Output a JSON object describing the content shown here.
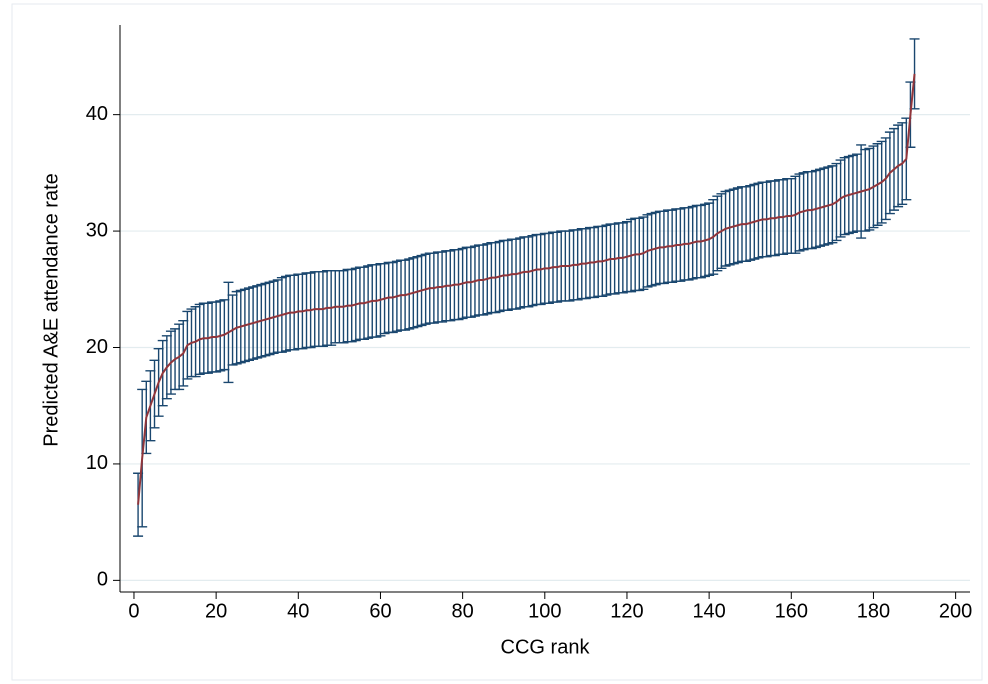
{
  "chart_data": {
    "type": "errorbar",
    "x_label": "CCG rank",
    "y_label": "Predicted A&E attendance rate",
    "x": [
      1,
      2,
      3,
      4,
      5,
      6,
      7,
      8,
      9,
      10,
      11,
      12,
      13,
      14,
      15,
      16,
      17,
      18,
      19,
      20,
      21,
      22,
      23,
      24,
      25,
      26,
      27,
      28,
      29,
      30,
      31,
      32,
      33,
      34,
      35,
      36,
      37,
      38,
      39,
      40,
      41,
      42,
      43,
      44,
      45,
      46,
      47,
      48,
      49,
      50,
      51,
      52,
      53,
      54,
      55,
      56,
      57,
      58,
      59,
      60,
      61,
      62,
      63,
      64,
      65,
      66,
      67,
      68,
      69,
      70,
      71,
      72,
      73,
      74,
      75,
      76,
      77,
      78,
      79,
      80,
      81,
      82,
      83,
      84,
      85,
      86,
      87,
      88,
      89,
      90,
      91,
      92,
      93,
      94,
      95,
      96,
      97,
      98,
      99,
      100,
      101,
      102,
      103,
      104,
      105,
      106,
      107,
      108,
      109,
      110,
      111,
      112,
      113,
      114,
      115,
      116,
      117,
      118,
      119,
      120,
      121,
      122,
      123,
      124,
      125,
      126,
      127,
      128,
      129,
      130,
      131,
      132,
      133,
      134,
      135,
      136,
      137,
      138,
      139,
      140,
      141,
      142,
      143,
      144,
      145,
      146,
      147,
      148,
      149,
      150,
      151,
      152,
      153,
      154,
      155,
      156,
      157,
      158,
      159,
      160,
      161,
      162,
      163,
      164,
      165,
      166,
      167,
      168,
      169,
      170,
      171,
      172,
      173,
      174,
      175,
      176,
      177,
      178,
      179,
      180,
      181,
      182,
      183,
      184,
      185,
      186,
      187,
      188,
      189,
      190
    ],
    "series": [
      {
        "color": "#90353b",
        "error_color": "#1a476f",
        "values": [
          6.5,
          10.5,
          14.0,
          15.0,
          16.0,
          17.0,
          17.8,
          18.3,
          18.7,
          19.0,
          19.2,
          19.5,
          20.2,
          20.4,
          20.5,
          20.7,
          20.8,
          20.8,
          20.9,
          20.9,
          21.0,
          21.1,
          21.3,
          21.5,
          21.7,
          21.8,
          21.9,
          22.0,
          22.1,
          22.2,
          22.3,
          22.4,
          22.5,
          22.6,
          22.7,
          22.8,
          22.9,
          23.0,
          23.0,
          23.1,
          23.1,
          23.2,
          23.2,
          23.3,
          23.3,
          23.3,
          23.4,
          23.4,
          23.5,
          23.5,
          23.5,
          23.6,
          23.6,
          23.7,
          23.8,
          23.8,
          23.9,
          24.0,
          24.0,
          24.1,
          24.2,
          24.3,
          24.3,
          24.4,
          24.5,
          24.5,
          24.6,
          24.7,
          24.8,
          24.9,
          25.0,
          25.1,
          25.1,
          25.2,
          25.2,
          25.3,
          25.3,
          25.4,
          25.4,
          25.5,
          25.6,
          25.6,
          25.7,
          25.8,
          25.8,
          25.9,
          26.0,
          26.0,
          26.1,
          26.2,
          26.2,
          26.3,
          26.3,
          26.4,
          26.5,
          26.5,
          26.6,
          26.7,
          26.7,
          26.8,
          26.8,
          26.9,
          26.9,
          27.0,
          27.0,
          27.0,
          27.1,
          27.1,
          27.2,
          27.2,
          27.3,
          27.3,
          27.4,
          27.4,
          27.5,
          27.6,
          27.6,
          27.7,
          27.7,
          27.8,
          27.9,
          28.0,
          28.0,
          28.1,
          28.3,
          28.4,
          28.5,
          28.6,
          28.6,
          28.7,
          28.7,
          28.8,
          28.8,
          28.9,
          28.9,
          29.0,
          29.1,
          29.1,
          29.2,
          29.3,
          29.5,
          29.8,
          30.0,
          30.2,
          30.3,
          30.4,
          30.5,
          30.6,
          30.6,
          30.7,
          30.8,
          30.9,
          31.0,
          31.0,
          31.1,
          31.1,
          31.2,
          31.2,
          31.3,
          31.3,
          31.4,
          31.6,
          31.7,
          31.8,
          31.8,
          31.9,
          32.0,
          32.1,
          32.2,
          32.3,
          32.5,
          32.8,
          33.0,
          33.1,
          33.2,
          33.3,
          33.4,
          33.5,
          33.6,
          33.8,
          34.0,
          34.2,
          34.5,
          35.0,
          35.3,
          35.6,
          35.8,
          36.2,
          40.0,
          43.5
        ],
        "errors": [
          2.7,
          5.9,
          3.1,
          3.0,
          2.9,
          2.9,
          2.8,
          2.7,
          2.7,
          2.6,
          2.8,
          2.8,
          2.9,
          2.9,
          3.0,
          3.0,
          3.0,
          3.0,
          3.0,
          3.0,
          3.0,
          3.0,
          4.3,
          3.0,
          3.1,
          3.1,
          3.1,
          3.1,
          3.1,
          3.1,
          3.1,
          3.1,
          3.1,
          3.1,
          3.1,
          3.2,
          3.2,
          3.2,
          3.2,
          3.2,
          3.2,
          3.2,
          3.2,
          3.2,
          3.2,
          3.2,
          3.2,
          3.2,
          3.1,
          3.1,
          3.1,
          3.1,
          3.1,
          3.1,
          3.1,
          3.1,
          3.1,
          3.1,
          3.1,
          3.1,
          3.0,
          3.0,
          3.0,
          3.0,
          3.0,
          3.0,
          3.0,
          3.0,
          3.0,
          3.0,
          3.0,
          3.0,
          3.0,
          3.0,
          3.0,
          3.0,
          3.0,
          3.0,
          3.0,
          3.0,
          3.0,
          3.0,
          3.0,
          3.0,
          3.0,
          3.0,
          3.0,
          3.0,
          3.0,
          3.0,
          3.0,
          3.0,
          3.0,
          3.0,
          3.0,
          3.0,
          3.0,
          3.0,
          3.0,
          3.0,
          3.0,
          3.0,
          3.0,
          3.0,
          3.0,
          3.0,
          3.0,
          3.0,
          3.0,
          3.0,
          3.0,
          3.0,
          3.0,
          3.0,
          3.0,
          3.0,
          3.0,
          3.0,
          3.0,
          3.0,
          3.1,
          3.1,
          3.1,
          3.1,
          3.1,
          3.1,
          3.1,
          3.1,
          3.1,
          3.1,
          3.1,
          3.1,
          3.1,
          3.1,
          3.1,
          3.1,
          3.1,
          3.1,
          3.1,
          3.1,
          3.2,
          3.2,
          3.2,
          3.2,
          3.2,
          3.2,
          3.2,
          3.2,
          3.2,
          3.2,
          3.2,
          3.2,
          3.2,
          3.2,
          3.2,
          3.2,
          3.2,
          3.2,
          3.2,
          3.2,
          3.3,
          3.3,
          3.3,
          3.3,
          3.3,
          3.3,
          3.3,
          3.3,
          3.3,
          3.3,
          3.3,
          3.3,
          3.3,
          3.3,
          3.3,
          3.3,
          4.0,
          3.5,
          3.5,
          3.5,
          3.5,
          3.5,
          3.5,
          3.5,
          3.5,
          3.5,
          3.5,
          3.5,
          2.8,
          3.0
        ]
      }
    ],
    "xlim": [
      -3.4,
      203.5
    ],
    "xticks": [
      0,
      20,
      40,
      60,
      80,
      100,
      120,
      140,
      160,
      180,
      200
    ],
    "ylim": [
      -1.0,
      47.7
    ],
    "yticks": [
      0,
      10,
      20,
      30,
      40
    ],
    "grid": true
  }
}
